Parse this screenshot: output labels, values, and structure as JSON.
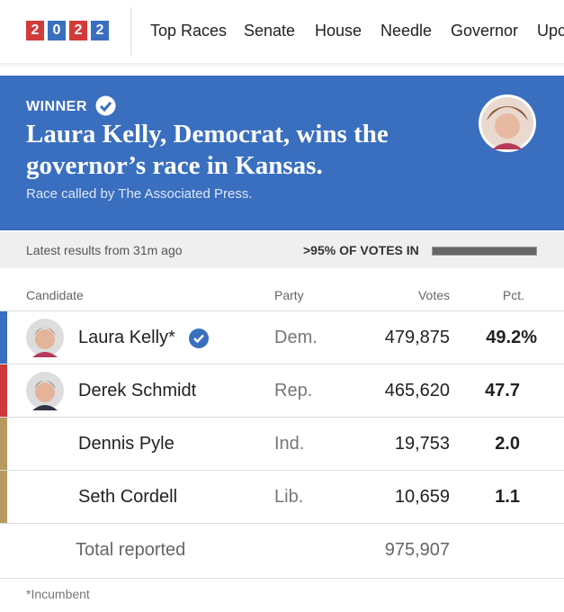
{
  "header": {
    "logo": [
      "2",
      "0",
      "2",
      "2"
    ],
    "nav": [
      "Top Races",
      "Senate",
      "House",
      "Needle",
      "Governor",
      "Upc"
    ]
  },
  "banner": {
    "label": "WINNER",
    "headline": "Laura Kelly, Democrat, wins the governor’s race in Kansas.",
    "subtitle": "Race called by The Associated Press."
  },
  "status": {
    "updated": "Latest results from 31m ago",
    "reporting": ">95% OF VOTES IN"
  },
  "table": {
    "columns": [
      "Candidate",
      "Party",
      "Votes",
      "Pct."
    ],
    "rows": [
      {
        "name": "Laura Kelly*",
        "party": "Dem.",
        "votes": "479,875",
        "pct": "49.2%",
        "color": "#3a6fc0"
      },
      {
        "name": "Derek Schmidt",
        "party": "Rep.",
        "votes": "465,620",
        "pct": "47.7",
        "color": "#cc3a3a"
      },
      {
        "name": "Dennis Pyle",
        "party": "Ind.",
        "votes": "19,753",
        "pct": "2.0",
        "color": "#b69a5e"
      },
      {
        "name": "Seth Cordell",
        "party": "Lib.",
        "votes": "10,659",
        "pct": "1.1",
        "color": "#b69a5e"
      }
    ],
    "total_label": "Total reported",
    "total_votes": "975,907"
  },
  "footnote": "*Incumbent"
}
